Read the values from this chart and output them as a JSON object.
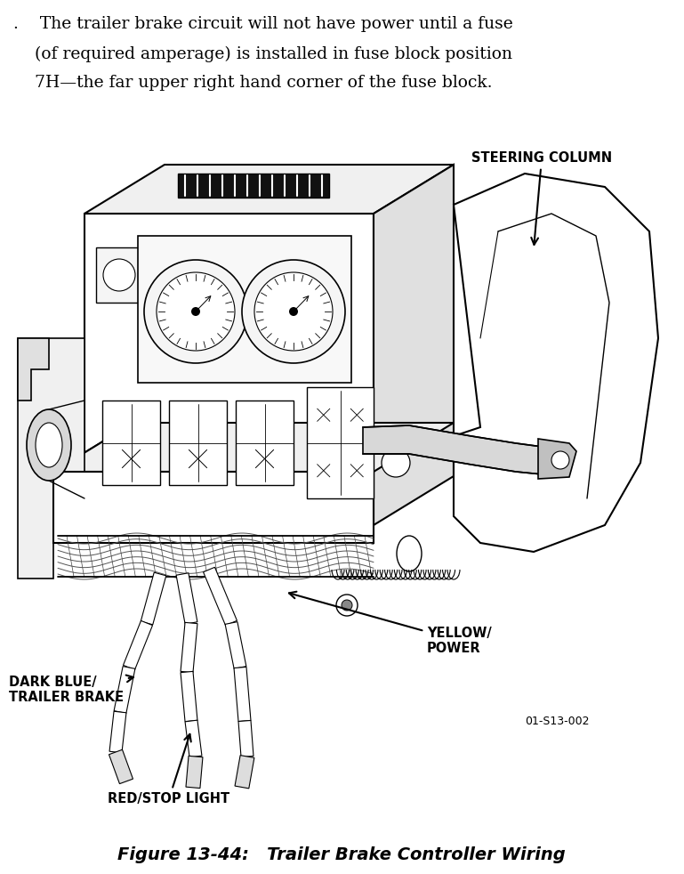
{
  "background_color": "#ffffff",
  "fig_width": 7.69,
  "fig_height": 9.82,
  "dpi": 100,
  "header_line1": ".    The trailer brake circuit will not have power until a fuse",
  "header_line2": "    (of required amperage) is installed in fuse block position",
  "header_line3": "    7H—the far upper right hand corner of the fuse block.",
  "header_fontsize": 13.5,
  "header_fontfamily": "serif",
  "caption_text": "Figure 13-44:   Trailer Brake Controller Wiring",
  "caption_fontsize": 14,
  "label_steering_col": "STEERING COLUMN",
  "label_yellow_line1": "YELLOW/",
  "label_yellow_line2": "POWER",
  "label_darkblue_line1": "DARK BLUE/",
  "label_darkblue_line2": "TRAILER BRAKE",
  "label_red": "RED/STOP LIGHT",
  "label_ref": "01-S13-002",
  "label_fontsize": 10.5,
  "label_weight": "bold"
}
